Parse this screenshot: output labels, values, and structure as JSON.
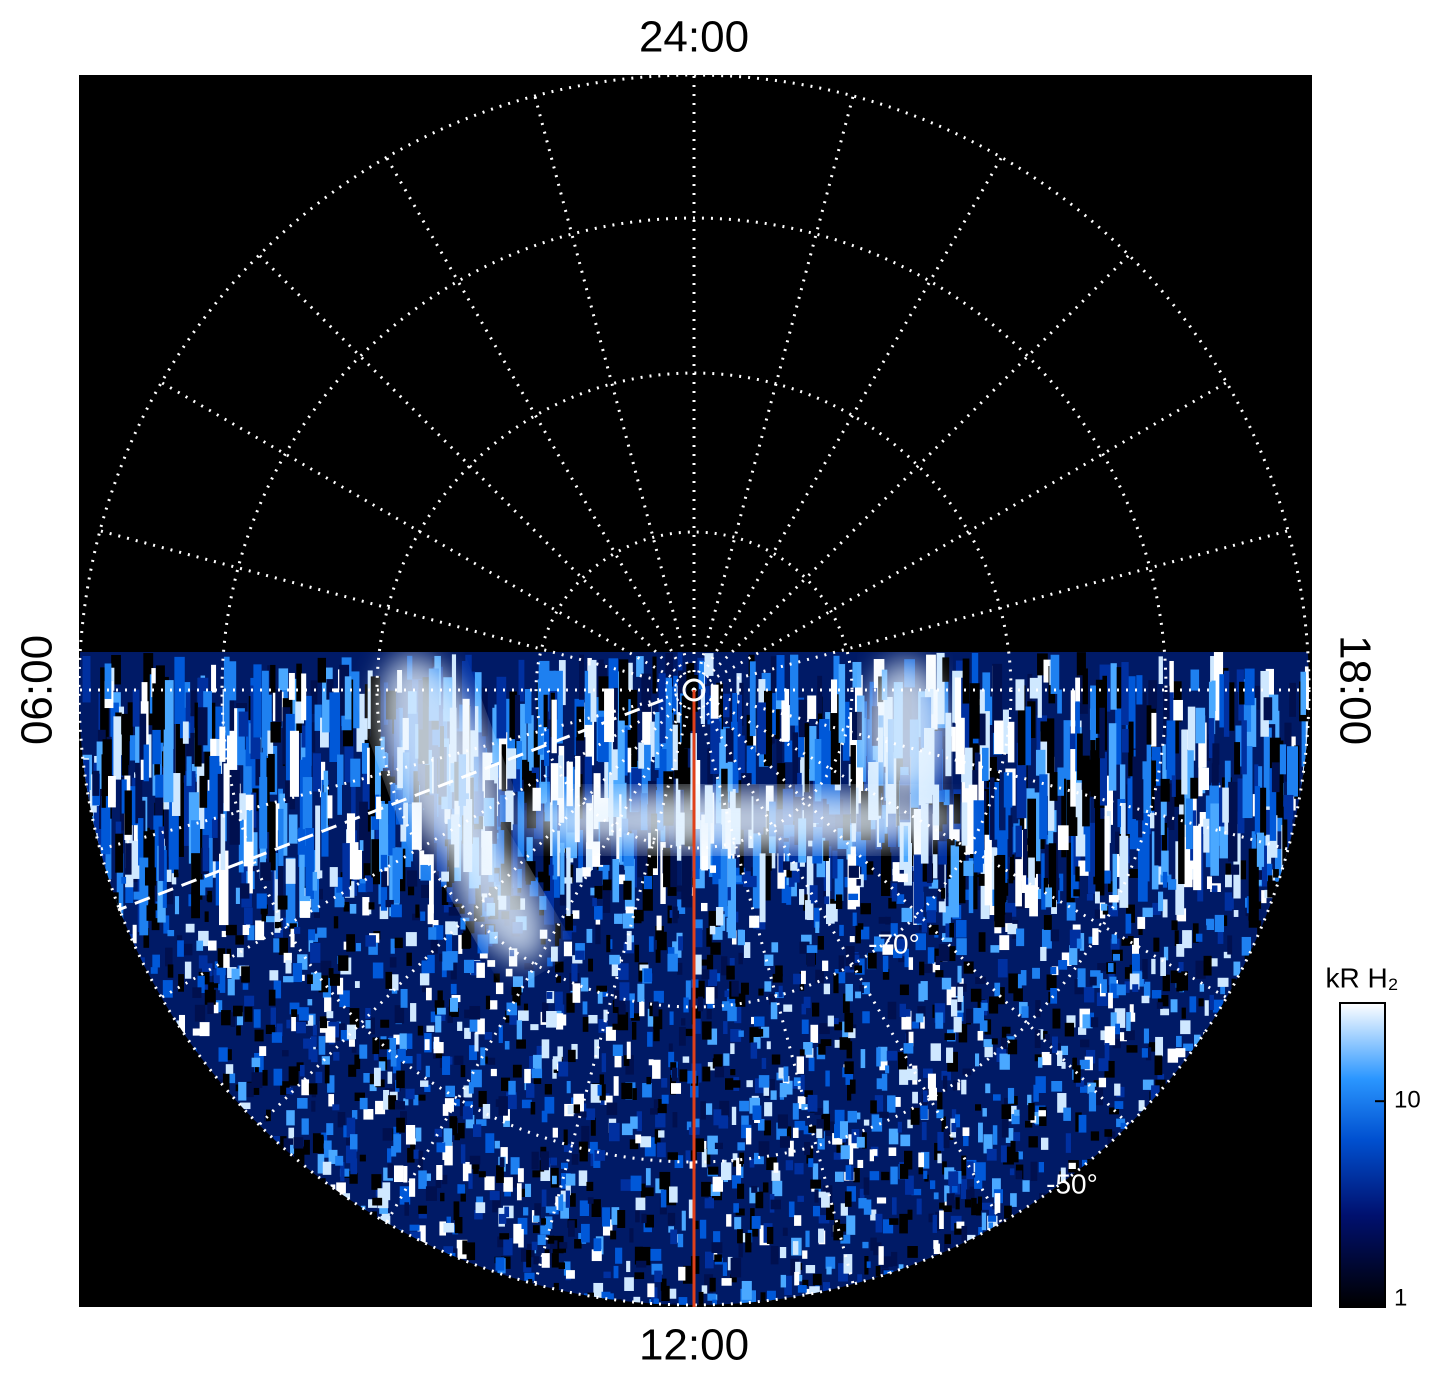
{
  "local_time_labels": {
    "top": "24:00",
    "bottom": "12:00",
    "left": "06:00",
    "right": "18:00"
  },
  "latitude_labels": [
    "-70°",
    "-50°"
  ],
  "colorbar": {
    "title": "kR H₂",
    "lim": [
      1,
      30
    ],
    "ticks": [
      1,
      10
    ],
    "log": true
  }
}
